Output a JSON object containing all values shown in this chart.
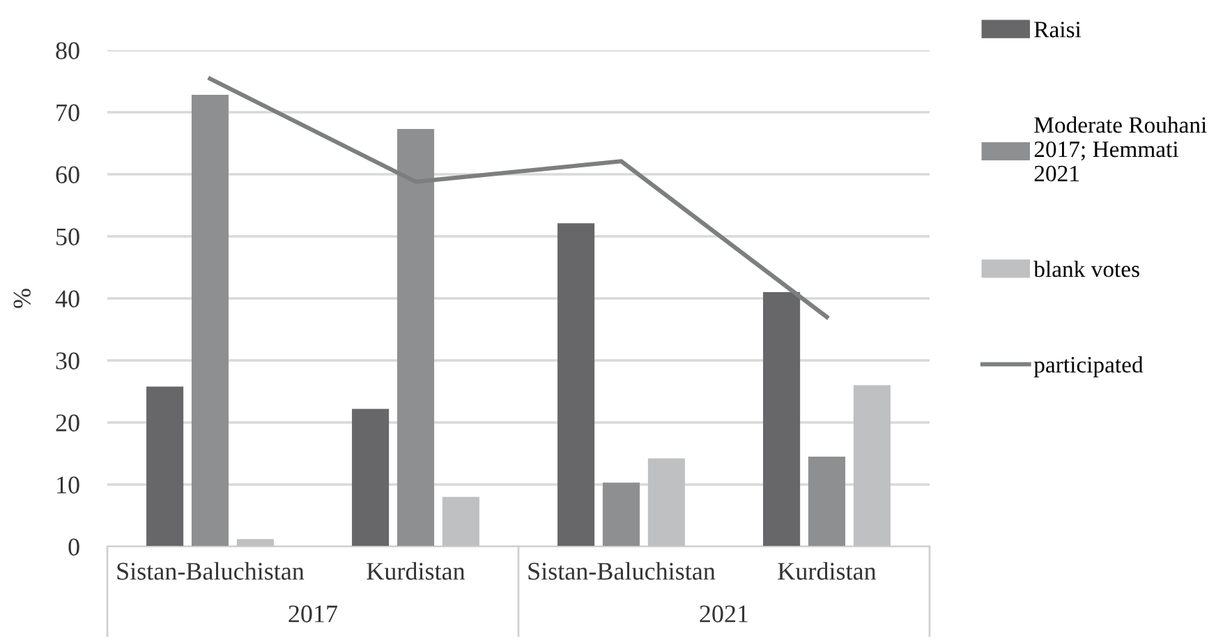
{
  "chart_data": {
    "type": "bar",
    "ylabel": "%",
    "categories": [
      "Sistan-Baluchistan",
      "Kurdistan",
      "Sistan-Baluchistan",
      "Kurdistan"
    ],
    "series": [
      {
        "name": "Raisi",
        "color": "#676769",
        "values": [
          25.8,
          22.2,
          52.1,
          41.0
        ]
      },
      {
        "name": "Moderate Rouhani 2017; Hemmati 2021",
        "color": "#8e8f91",
        "values": [
          72.8,
          67.3,
          10.3,
          14.5
        ]
      },
      {
        "name": "blank votes",
        "color": "#bfc0c2",
        "values": [
          1.2,
          8.0,
          14.2,
          26.0
        ]
      },
      {
        "name": "participated",
        "color": "#7d7e80",
        "type": "line",
        "values": [
          75.4,
          58.8,
          62.1,
          37.0
        ]
      }
    ],
    "annotations": [
      "2017",
      "2021"
    ],
    "ylim": [
      0,
      80
    ],
    "yticks": [
      0,
      10,
      20,
      30,
      40,
      50,
      60,
      70,
      80
    ],
    "grid": "y",
    "legend": "right"
  }
}
